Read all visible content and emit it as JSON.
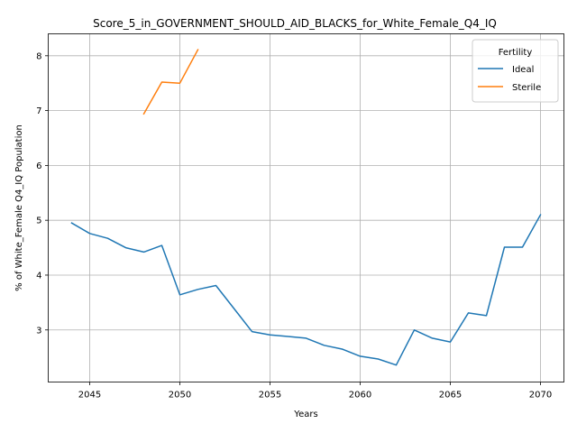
{
  "chart_data": {
    "type": "line",
    "title": "Score_5_in_GOVERNMENT_SHOULD_AID_BLACKS_for_White_Female_Q4_IQ",
    "xlabel": "Years",
    "ylabel": "% of White_Female Q4_IQ Population",
    "xlim": [
      2042.7,
      2071.3
    ],
    "ylim": [
      2.05,
      8.4
    ],
    "xticks": [
      2045,
      2050,
      2055,
      2060,
      2065,
      2070
    ],
    "yticks": [
      3,
      4,
      5,
      6,
      7,
      8
    ],
    "grid": true,
    "legend": {
      "title": "Fertility",
      "placement": "top-right"
    },
    "series": [
      {
        "name": "Ideal",
        "color": "#1f77b4",
        "x": [
          2044,
          2045,
          2046,
          2047,
          2048,
          2049,
          2050,
          2051,
          2052,
          2053,
          2054,
          2055,
          2056,
          2057,
          2058,
          2059,
          2060,
          2061,
          2062,
          2063,
          2064,
          2065,
          2066,
          2067,
          2068,
          2069,
          2070
        ],
        "y": [
          4.95,
          4.76,
          4.67,
          4.5,
          4.42,
          4.54,
          3.64,
          3.74,
          3.81,
          3.39,
          2.97,
          2.91,
          2.88,
          2.85,
          2.72,
          2.65,
          2.52,
          2.47,
          2.36,
          3.0,
          2.85,
          2.78,
          3.31,
          3.26,
          4.51,
          4.51,
          5.1
        ]
      },
      {
        "name": "Sterile",
        "color": "#ff7f0e",
        "x": [
          2048,
          2049,
          2050,
          2051
        ],
        "y": [
          6.94,
          7.52,
          7.5,
          8.11
        ]
      }
    ]
  }
}
